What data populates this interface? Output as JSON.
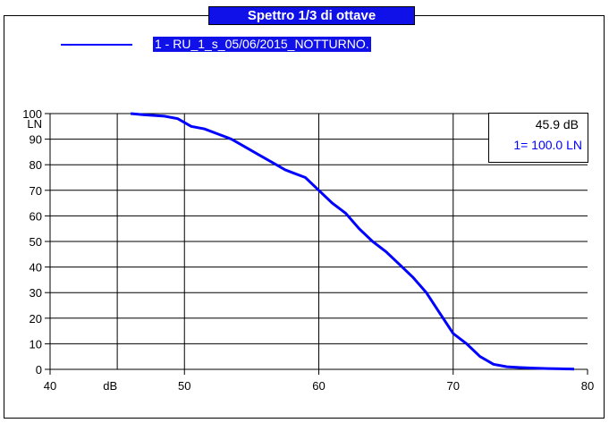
{
  "title": "Spettro 1/3 di ottave",
  "legend": {
    "series_label": "1 - RU_1_s_05/06/2015_NOTTURNO.",
    "line_color": "#0000ff"
  },
  "info": {
    "level": "45.9 dB",
    "ln": "1=  100.0 LN"
  },
  "colors": {
    "accent": "#1010e8",
    "series": "#0000ff",
    "background": "#ffffff"
  },
  "chart_data": {
    "type": "line",
    "title": "Spettro 1/3 di ottave",
    "xlabel": "dB",
    "ylabel": "LN",
    "xlim": [
      40,
      80
    ],
    "ylim": [
      0,
      100
    ],
    "x_ticks": [
      "40",
      "50",
      "60",
      "70",
      "80"
    ],
    "y_ticks": [
      "0",
      "10",
      "20",
      "30",
      "40",
      "50",
      "60",
      "70",
      "80",
      "90",
      "100"
    ],
    "grid": true,
    "legend_position": "top",
    "series": [
      {
        "name": "1 - RU_1_s_05/06/2015_NOTTURNO.",
        "color": "#0000ff",
        "x": [
          46.0,
          47.0,
          48.5,
          49.5,
          50.5,
          51.5,
          52.5,
          53.5,
          54.5,
          55.5,
          56.5,
          57.5,
          58.0,
          59.0,
          60.0,
          61.0,
          62.0,
          63.0,
          64.0,
          65.0,
          66.0,
          67.0,
          68.0,
          69.0,
          70.0,
          71.0,
          72.0,
          73.0,
          74.0,
          75.0,
          76.0,
          77.0,
          78.0,
          79.0
        ],
        "values": [
          100,
          99.5,
          99,
          98,
          95,
          94,
          92,
          90,
          87,
          84,
          81,
          78,
          77,
          75,
          70,
          65,
          61,
          55,
          50,
          46,
          41,
          36,
          30,
          22,
          14,
          10,
          5,
          2,
          1,
          0.7,
          0.5,
          0.3,
          0.2,
          0.1
        ]
      }
    ]
  }
}
